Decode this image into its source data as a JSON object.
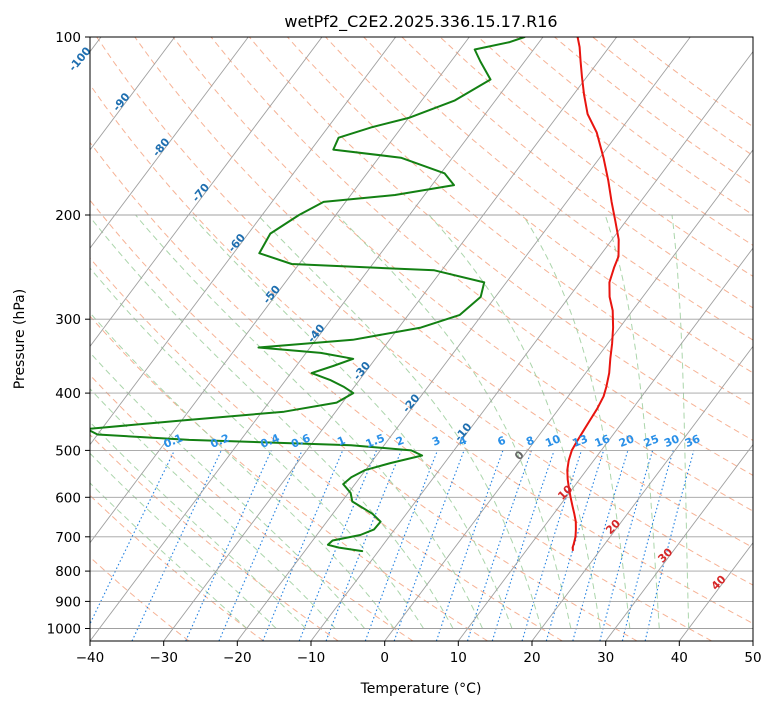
{
  "chart_data": {
    "type": "line",
    "title": "wetPf2_C2E2.2025.336.15.17.R16",
    "xlabel": "Temperature (°C)",
    "ylabel": "Pressure (hPa)",
    "xlim": [
      -40,
      50
    ],
    "ylim": [
      1050,
      100
    ],
    "y_scale": "log",
    "skew": true,
    "grid": true,
    "x_ticks": [
      -40,
      -30,
      -20,
      -10,
      0,
      10,
      20,
      30,
      40,
      50
    ],
    "y_ticks": [
      100,
      200,
      300,
      400,
      500,
      600,
      700,
      800,
      900,
      1000
    ],
    "series": [
      {
        "type": "temperature",
        "color": "#e8140f",
        "points": [
          [
            737,
            16.3
          ],
          [
            730,
            16.0
          ],
          [
            720,
            15.8
          ],
          [
            700,
            15.3
          ],
          [
            680,
            14.6
          ],
          [
            660,
            13.8
          ],
          [
            640,
            12.8
          ],
          [
            620,
            11.7
          ],
          [
            600,
            10.6
          ],
          [
            580,
            9.5
          ],
          [
            560,
            8.4
          ],
          [
            540,
            7.4
          ],
          [
            520,
            6.6
          ],
          [
            500,
            6.0
          ],
          [
            485,
            5.8
          ],
          [
            465,
            5.6
          ],
          [
            445,
            5.4
          ],
          [
            425,
            5.2
          ],
          [
            405,
            4.8
          ],
          [
            390,
            4.2
          ],
          [
            370,
            3.2
          ],
          [
            350,
            1.9
          ],
          [
            330,
            0.6
          ],
          [
            310,
            -0.9
          ],
          [
            290,
            -2.7
          ],
          [
            275,
            -4.5
          ],
          [
            260,
            -6.0
          ],
          [
            245,
            -6.9
          ],
          [
            235,
            -7.4
          ],
          [
            220,
            -9.1
          ],
          [
            205,
            -11.4
          ],
          [
            190,
            -13.9
          ],
          [
            175,
            -16.5
          ],
          [
            160,
            -19.5
          ],
          [
            145,
            -23.0
          ],
          [
            135,
            -26.1
          ],
          [
            125,
            -28.6
          ],
          [
            117,
            -30.6
          ],
          [
            110,
            -32.4
          ],
          [
            104,
            -34.0
          ],
          [
            100,
            -35.3
          ]
        ]
      },
      {
        "type": "dewpoint",
        "color": "#138013",
        "points": [
          [
            740,
            -12.2
          ],
          [
            730,
            -15.7
          ],
          [
            722,
            -17.5
          ],
          [
            710,
            -17.3
          ],
          [
            695,
            -14.1
          ],
          [
            680,
            -12.8
          ],
          [
            660,
            -12.7
          ],
          [
            640,
            -14.6
          ],
          [
            610,
            -18.6
          ],
          [
            590,
            -19.7
          ],
          [
            570,
            -21.6
          ],
          [
            555,
            -21.2
          ],
          [
            540,
            -20.1
          ],
          [
            525,
            -17.3
          ],
          [
            510,
            -13.8
          ],
          [
            500,
            -15.8
          ],
          [
            490,
            -24.5
          ],
          [
            480,
            -47.0
          ],
          [
            470,
            -60.0
          ],
          [
            460,
            -62.0
          ],
          [
            445,
            -50.0
          ],
          [
            430,
            -37.0
          ],
          [
            415,
            -30.8
          ],
          [
            400,
            -29.5
          ],
          [
            390,
            -31.5
          ],
          [
            380,
            -34.0
          ],
          [
            370,
            -37.2
          ],
          [
            360,
            -35.0
          ],
          [
            350,
            -33.0
          ],
          [
            342,
            -38.0
          ],
          [
            335,
            -47.0
          ],
          [
            325,
            -35.0
          ],
          [
            310,
            -27.0
          ],
          [
            295,
            -23.0
          ],
          [
            275,
            -22.0
          ],
          [
            260,
            -23.0
          ],
          [
            248,
            -31.0
          ],
          [
            242,
            -51.0
          ],
          [
            232,
            -56.5
          ],
          [
            215,
            -57.0
          ],
          [
            200,
            -55.0
          ],
          [
            190,
            -53.0
          ],
          [
            185,
            -44.0
          ],
          [
            178,
            -37.0
          ],
          [
            170,
            -39.5
          ],
          [
            160,
            -47.0
          ],
          [
            155,
            -57.0
          ],
          [
            148,
            -57.5
          ],
          [
            142,
            -54.0
          ],
          [
            137,
            -50.0
          ],
          [
            128,
            -45.5
          ],
          [
            118,
            -42.8
          ],
          [
            110,
            -46.0
          ],
          [
            105,
            -48.0
          ],
          [
            102,
            -44.0
          ],
          [
            100,
            -42.5
          ]
        ]
      }
    ],
    "isotherm_labels": [
      "-100",
      "-90",
      "-80",
      "-70",
      "-60",
      "-50",
      "-40",
      "-30",
      "-20",
      "-10"
    ],
    "mixing_ratio_labels": [
      "0.1",
      "0.2",
      "0.4",
      "0.6",
      "1",
      "1.5",
      "2",
      "3",
      "4",
      "6",
      "8",
      "10",
      "13",
      "16",
      "20",
      "25",
      "30",
      "36"
    ],
    "isotherm_red_labels": [
      "0",
      "10",
      "20",
      "30",
      "40"
    ],
    "background_colors": {
      "isotherm": "#a0a0a0",
      "dry_adiabat": "#f4a582",
      "moist_adiabat": "#9cce9c",
      "mixing_ratio": "#1f7fe0",
      "isotherm_label": "#1f6fb0",
      "mixing_label": "#2a90e8",
      "warm_label": "#d62728"
    }
  }
}
